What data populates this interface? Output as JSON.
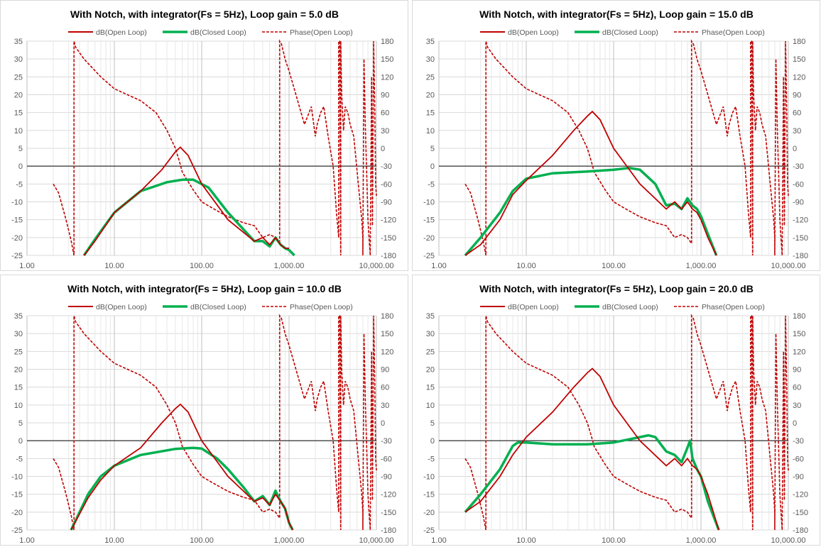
{
  "legend": {
    "open_loop": "dB(Open Loop)",
    "closed_loop": "dB(Closed Loop)",
    "phase": "Phase(Open Loop)"
  },
  "colors": {
    "open_loop": "#c00000",
    "closed_loop": "#00b050",
    "phase": "#c00000",
    "gridline": "#d9d9d9"
  },
  "chart_data": [
    {
      "type": "line",
      "title": "With Notch, with integrator(Fs = 5Hz), Loop gain = 5.0 dB",
      "x_scale": "log",
      "xlim": [
        1,
        10000
      ],
      "x_ticks": [
        "1.00",
        "10.00",
        "100.00",
        "1,000.00",
        "10,000.00"
      ],
      "ylim_left": [
        -25,
        35
      ],
      "y_ticks_left": [
        "35",
        "30",
        "25",
        "20",
        "15",
        "10",
        "5",
        "0",
        "-5",
        "-10",
        "-15",
        "-20",
        "-25"
      ],
      "ylim_right": [
        -180,
        180
      ],
      "y_ticks_right": [
        "180",
        "150",
        "120",
        "90",
        "60",
        "30",
        "0",
        "-30",
        "-60",
        "-90",
        "-120",
        "-150",
        "-180"
      ],
      "series": [
        {
          "name": "dB(Open Loop)",
          "axis": "left",
          "x": [
            4.5,
            6,
            10,
            20,
            35,
            50,
            57,
            70,
            100,
            200,
            400,
            500,
            600,
            700,
            800,
            900,
            1000
          ],
          "y": [
            -25,
            -21,
            -13,
            -7,
            -1,
            4,
            5.3,
            3,
            -5,
            -15,
            -21,
            -20,
            -22,
            -20,
            -22,
            -23,
            -23
          ]
        },
        {
          "name": "dB(Closed Loop)",
          "axis": "left",
          "x": [
            4.5,
            6,
            10,
            20,
            40,
            60,
            80,
            120,
            200,
            400,
            500,
            600,
            700,
            800,
            900,
            1000,
            1150
          ],
          "y": [
            -25,
            -20.5,
            -13,
            -7,
            -4.5,
            -3.8,
            -3.8,
            -6,
            -13,
            -21,
            -21,
            -22.5,
            -20,
            -22,
            -23,
            -23.5,
            -25
          ]
        },
        {
          "name": "Phase(Open Loop)",
          "axis": "right",
          "x": [
            2,
            2.3,
            2.8,
            3.2,
            3.45,
            3.45,
            3.6,
            4.5,
            7,
            10,
            20,
            30,
            40,
            50,
            55,
            60,
            80,
            100,
            150,
            200,
            300,
            400,
            500,
            600,
            700,
            780,
            780,
            820,
            900,
            1000,
            1200,
            1500,
            1800,
            2000,
            2100,
            2300,
            2500,
            2800,
            3200,
            3500,
            3700,
            3700,
            3800,
            3900,
            3900,
            4000,
            4200,
            4400,
            4700,
            5000,
            5500,
            6200,
            6800,
            7000,
            7000,
            7200,
            7500,
            8000,
            8500,
            8800,
            9000,
            9300,
            9600,
            9800,
            10000
          ],
          "y": [
            -60,
            -75,
            -120,
            -155,
            -180,
            180,
            170,
            150,
            120,
            100,
            80,
            60,
            30,
            0,
            -20,
            -40,
            -70,
            -90,
            -105,
            -115,
            -125,
            -130,
            -150,
            -145,
            -150,
            -160,
            180,
            175,
            150,
            130,
            90,
            40,
            70,
            20,
            40,
            60,
            70,
            20,
            -30,
            -110,
            -150,
            180,
            180,
            -180,
            180,
            90,
            30,
            70,
            60,
            40,
            20,
            -60,
            -120,
            -150,
            -180,
            150,
            30,
            -120,
            -180,
            120,
            -130,
            180,
            60,
            -60,
            -80
          ]
        }
      ]
    },
    {
      "type": "line",
      "title": "With Notch, with integrator(Fs = 5Hz), Loop gain = 15.0 dB",
      "x_scale": "log",
      "xlim": [
        1,
        10000
      ],
      "x_ticks": [
        "1.00",
        "10.00",
        "100.00",
        "1,000.00",
        "10,000.00"
      ],
      "ylim_left": [
        -25,
        35
      ],
      "y_ticks_left": [
        "35",
        "30",
        "25",
        "20",
        "15",
        "10",
        "5",
        "0",
        "-5",
        "-10",
        "-15",
        "-20",
        "-25"
      ],
      "ylim_right": [
        -180,
        180
      ],
      "y_ticks_right": [
        "180",
        "150",
        "120",
        "90",
        "60",
        "30",
        "0",
        "-30",
        "-60",
        "-90",
        "-120",
        "-150",
        "-180"
      ],
      "series": [
        {
          "name": "dB(Open Loop)",
          "axis": "left",
          "x": [
            2,
            3,
            5,
            7,
            10,
            20,
            35,
            50,
            57,
            70,
            100,
            200,
            400,
            500,
            600,
            700,
            800,
            900,
            1000,
            1200,
            1500
          ],
          "y": [
            -25,
            -22,
            -15,
            -8,
            -4,
            3,
            10,
            14,
            15.3,
            13,
            5,
            -5,
            -12,
            -10,
            -12,
            -10,
            -12,
            -13,
            -15,
            -20,
            -25
          ]
        },
        {
          "name": "dB(Closed Loop)",
          "axis": "left",
          "x": [
            2,
            3,
            5,
            7,
            10,
            20,
            50,
            100,
            150,
            200,
            300,
            400,
            500,
            600,
            700,
            800,
            900,
            1000,
            1200,
            1500
          ],
          "y": [
            -25,
            -20,
            -13,
            -7,
            -3.5,
            -2,
            -1.5,
            -1,
            -0.5,
            -1,
            -5,
            -11,
            -10.5,
            -12,
            -9,
            -11,
            -12,
            -14,
            -19,
            -25
          ]
        },
        {
          "name": "Phase(Open Loop)",
          "axis": "right",
          "x": [
            2,
            2.3,
            2.8,
            3.2,
            3.45,
            3.45,
            3.6,
            4.5,
            7,
            10,
            20,
            30,
            40,
            50,
            55,
            60,
            80,
            100,
            150,
            200,
            300,
            400,
            500,
            600,
            700,
            780,
            780,
            820,
            900,
            1000,
            1200,
            1500,
            1800,
            2000,
            2100,
            2300,
            2500,
            2800,
            3200,
            3500,
            3700,
            3700,
            3800,
            3900,
            3900,
            4000,
            4200,
            4400,
            4700,
            5000,
            5500,
            6200,
            6800,
            7000,
            7000,
            7200,
            7500,
            8000,
            8500,
            8800,
            9000,
            9300,
            9600,
            9800,
            10000
          ],
          "y": [
            -60,
            -75,
            -120,
            -155,
            -180,
            180,
            170,
            150,
            120,
            100,
            80,
            60,
            30,
            0,
            -20,
            -40,
            -70,
            -90,
            -105,
            -115,
            -125,
            -130,
            -150,
            -145,
            -150,
            -160,
            180,
            175,
            150,
            130,
            90,
            40,
            70,
            20,
            40,
            60,
            70,
            20,
            -30,
            -110,
            -150,
            180,
            180,
            -180,
            180,
            90,
            30,
            70,
            60,
            40,
            20,
            -60,
            -120,
            -150,
            -180,
            150,
            30,
            -120,
            -180,
            120,
            -130,
            180,
            60,
            -60,
            -80
          ]
        }
      ]
    },
    {
      "type": "line",
      "title": "With Notch, with integrator(Fs = 5Hz), Loop gain = 10.0 dB",
      "x_scale": "log",
      "xlim": [
        1,
        10000
      ],
      "x_ticks": [
        "1.00",
        "10.00",
        "100.00",
        "1,000.00",
        "10,000.00"
      ],
      "ylim_left": [
        -25,
        35
      ],
      "y_ticks_left": [
        "35",
        "30",
        "25",
        "20",
        "15",
        "10",
        "5",
        "0",
        "-5",
        "-10",
        "-15",
        "-20",
        "-25"
      ],
      "ylim_right": [
        -180,
        180
      ],
      "y_ticks_right": [
        "180",
        "150",
        "120",
        "90",
        "60",
        "30",
        "0",
        "-30",
        "-60",
        "-90",
        "-120",
        "-150",
        "-180"
      ],
      "series": [
        {
          "name": "dB(Open Loop)",
          "axis": "left",
          "x": [
            3.2,
            5,
            7,
            10,
            20,
            35,
            50,
            57,
            70,
            100,
            200,
            400,
            500,
            600,
            700,
            800,
            900,
            1000,
            1100
          ],
          "y": [
            -25,
            -16,
            -11,
            -7,
            -2,
            5,
            9,
            10.2,
            8,
            0,
            -10,
            -17,
            -16,
            -18,
            -15,
            -17,
            -19,
            -23,
            -25
          ]
        },
        {
          "name": "dB(Closed Loop)",
          "axis": "left",
          "x": [
            3.2,
            5,
            7,
            10,
            20,
            50,
            80,
            100,
            150,
            200,
            300,
            400,
            500,
            600,
            700,
            800,
            900,
            1000,
            1100
          ],
          "y": [
            -25,
            -15,
            -10,
            -7,
            -4,
            -2.3,
            -2,
            -2.2,
            -5,
            -8,
            -13,
            -17,
            -15.5,
            -18,
            -14,
            -17,
            -19,
            -23,
            -25
          ]
        },
        {
          "name": "Phase(Open Loop)",
          "axis": "right",
          "x": [
            2,
            2.3,
            2.8,
            3.2,
            3.45,
            3.45,
            3.6,
            4.5,
            7,
            10,
            20,
            30,
            40,
            50,
            55,
            60,
            80,
            100,
            150,
            200,
            300,
            400,
            500,
            600,
            700,
            780,
            780,
            820,
            900,
            1000,
            1200,
            1500,
            1800,
            2000,
            2100,
            2300,
            2500,
            2800,
            3200,
            3500,
            3700,
            3700,
            3800,
            3900,
            3900,
            4000,
            4200,
            4400,
            4700,
            5000,
            5500,
            6200,
            6800,
            7000,
            7000,
            7200,
            7500,
            8000,
            8500,
            8800,
            9000,
            9300,
            9600,
            9800,
            10000
          ],
          "y": [
            -60,
            -75,
            -120,
            -155,
            -180,
            180,
            170,
            150,
            120,
            100,
            80,
            60,
            30,
            0,
            -20,
            -40,
            -70,
            -90,
            -105,
            -115,
            -125,
            -130,
            -150,
            -145,
            -150,
            -160,
            180,
            175,
            150,
            130,
            90,
            40,
            70,
            20,
            40,
            60,
            70,
            20,
            -30,
            -110,
            -150,
            180,
            180,
            -180,
            180,
            90,
            30,
            70,
            60,
            40,
            20,
            -60,
            -120,
            -150,
            -180,
            150,
            30,
            -120,
            -180,
            120,
            -130,
            180,
            60,
            -60,
            -80
          ]
        }
      ]
    },
    {
      "type": "line",
      "title": "With Notch, with integrator(Fs = 5Hz), Loop gain = 20.0 dB",
      "x_scale": "log",
      "xlim": [
        1,
        10000
      ],
      "x_ticks": [
        "1.00",
        "10.00",
        "100.00",
        "1,000.00",
        "10,000.00"
      ],
      "ylim_left": [
        -25,
        35
      ],
      "y_ticks_left": [
        "35",
        "30",
        "25",
        "20",
        "15",
        "10",
        "5",
        "0",
        "-5",
        "-10",
        "-15",
        "-20",
        "-25"
      ],
      "ylim_right": [
        -180,
        180
      ],
      "y_ticks_right": [
        "180",
        "150",
        "120",
        "90",
        "60",
        "30",
        "0",
        "-30",
        "-60",
        "-90",
        "-120",
        "-150",
        "-180"
      ],
      "series": [
        {
          "name": "dB(Open Loop)",
          "axis": "left",
          "x": [
            2,
            3,
            5,
            7,
            10,
            20,
            35,
            50,
            57,
            70,
            100,
            200,
            400,
            500,
            600,
            700,
            800,
            900,
            1000,
            1200,
            1600
          ],
          "y": [
            -20,
            -17,
            -10,
            -4,
            1,
            8,
            15,
            19,
            20.2,
            18,
            10,
            0,
            -7,
            -5,
            -7,
            -5,
            -7,
            -8,
            -10,
            -15,
            -25
          ]
        },
        {
          "name": "dB(Closed Loop)",
          "axis": "left",
          "x": [
            2,
            3,
            5,
            7,
            8,
            10,
            20,
            50,
            100,
            200,
            250,
            300,
            400,
            500,
            600,
            700,
            750,
            800,
            900,
            1000,
            1200,
            1600
          ],
          "y": [
            -20,
            -15,
            -8,
            -1.5,
            -0.5,
            -0.5,
            -1,
            -1,
            -0.5,
            1,
            1.5,
            1,
            -3,
            -4,
            -6,
            -2,
            0,
            -5,
            -8,
            -10,
            -17,
            -25
          ]
        },
        {
          "name": "Phase(Open Loop)",
          "axis": "right",
          "x": [
            2,
            2.3,
            2.8,
            3.2,
            3.45,
            3.45,
            3.6,
            4.5,
            7,
            10,
            20,
            30,
            40,
            50,
            55,
            60,
            80,
            100,
            150,
            200,
            300,
            400,
            500,
            600,
            700,
            780,
            780,
            820,
            900,
            1000,
            1200,
            1500,
            1800,
            2000,
            2100,
            2300,
            2500,
            2800,
            3200,
            3500,
            3700,
            3700,
            3800,
            3900,
            3900,
            4000,
            4200,
            4400,
            4700,
            5000,
            5500,
            6200,
            6800,
            7000,
            7000,
            7200,
            7500,
            8000,
            8500,
            8800,
            9000,
            9300,
            9600,
            9800,
            10000
          ],
          "y": [
            -60,
            -75,
            -120,
            -155,
            -180,
            180,
            170,
            150,
            120,
            100,
            80,
            60,
            30,
            0,
            -20,
            -40,
            -70,
            -90,
            -105,
            -115,
            -125,
            -130,
            -150,
            -145,
            -150,
            -160,
            180,
            175,
            150,
            130,
            90,
            40,
            70,
            20,
            40,
            60,
            70,
            20,
            -30,
            -110,
            -150,
            180,
            180,
            -180,
            180,
            90,
            30,
            70,
            60,
            40,
            20,
            -60,
            -120,
            -150,
            -180,
            150,
            30,
            -120,
            -180,
            120,
            -130,
            180,
            60,
            -60,
            -80
          ]
        }
      ]
    }
  ]
}
